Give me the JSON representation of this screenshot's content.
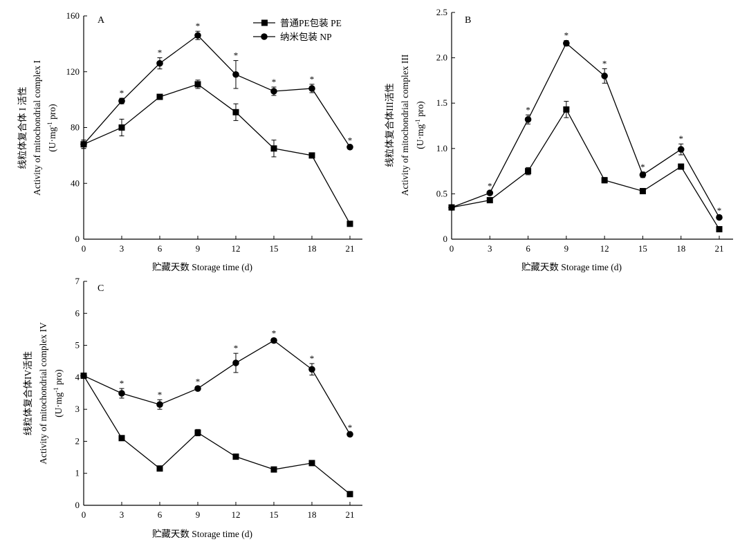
{
  "chart_data": [
    {
      "type": "line",
      "panel_label": "A",
      "x": [
        0,
        3,
        6,
        9,
        12,
        15,
        18,
        21
      ],
      "xlabel": "贮藏天数 Storage time (d)",
      "ylabel_lines": [
        "线粒体复合体 I 活性",
        "Activity of mitochondrial complex  I",
        "(U·mg",
        "-1",
        " pro)"
      ],
      "ylim": [
        0,
        160
      ],
      "yticks": [
        0,
        40,
        80,
        120,
        160
      ],
      "legend": "top-center",
      "grid": false,
      "series": [
        {
          "name": "普通PE包装 PE",
          "marker": "square",
          "values": [
            68,
            80,
            102,
            111,
            91,
            65,
            60,
            11
          ],
          "errors": [
            3,
            6,
            1,
            3,
            6,
            6,
            1,
            1
          ]
        },
        {
          "name": "纳米包装 NP",
          "marker": "circle",
          "values": [
            68,
            99,
            126,
            146,
            118,
            106,
            108,
            66
          ],
          "errors": [
            3,
            2,
            4,
            3,
            10,
            3,
            3,
            1
          ],
          "significant": [
            false,
            true,
            true,
            true,
            true,
            true,
            true,
            true
          ]
        }
      ]
    },
    {
      "type": "line",
      "panel_label": "B",
      "x": [
        0,
        3,
        6,
        9,
        12,
        15,
        18,
        21
      ],
      "xlabel": "贮藏天数 Storage time (d)",
      "ylabel_lines": [
        "线粒体复合体III活性",
        "Activity of mitochondrial complex III",
        "(U·mg",
        "-1",
        " pro)"
      ],
      "ylim": [
        0,
        2.5
      ],
      "yticks": [
        0,
        0.5,
        1.0,
        1.5,
        2.0,
        2.5
      ],
      "ytick_labels": [
        "0",
        "0.5",
        "1.0",
        "1.5",
        "2.0",
        "2.5"
      ],
      "grid": false,
      "series": [
        {
          "name": "普通PE包装 PE",
          "marker": "square",
          "values": [
            0.35,
            0.43,
            0.75,
            1.43,
            0.65,
            0.53,
            0.8,
            0.11
          ],
          "errors": [
            0.02,
            0.02,
            0.04,
            0.09,
            0.03,
            0.02,
            0.03,
            0.01
          ]
        },
        {
          "name": "纳米包装 NP",
          "marker": "circle",
          "values": [
            0.35,
            0.51,
            1.32,
            2.16,
            1.8,
            0.71,
            0.99,
            0.24
          ],
          "errors": [
            0.02,
            0.02,
            0.05,
            0.03,
            0.08,
            0.03,
            0.06,
            0.02
          ],
          "significant": [
            false,
            true,
            true,
            true,
            true,
            true,
            true,
            true
          ]
        }
      ]
    },
    {
      "type": "line",
      "panel_label": "C",
      "x": [
        0,
        3,
        6,
        9,
        12,
        15,
        18,
        21
      ],
      "xlabel": "贮藏天数 Storage time (d)",
      "ylabel_lines": [
        "线粒体复合体IV活性",
        "Activity of mitochondrial complex IV",
        "(U·mg",
        "-1",
        " pro)"
      ],
      "ylim": [
        0,
        7
      ],
      "yticks": [
        0,
        1,
        2,
        3,
        4,
        5,
        6,
        7
      ],
      "grid": false,
      "series": [
        {
          "name": "普通PE包装 PE",
          "marker": "square",
          "values": [
            4.05,
            2.1,
            1.15,
            2.27,
            1.52,
            1.12,
            1.32,
            0.35
          ],
          "errors": [
            0.05,
            0.05,
            0.05,
            0.1,
            0.08,
            0.04,
            0.05,
            0.03
          ]
        },
        {
          "name": "纳米包装 NP",
          "marker": "circle",
          "values": [
            4.05,
            3.5,
            3.15,
            3.65,
            4.45,
            5.15,
            4.25,
            2.22
          ],
          "errors": [
            0.05,
            0.15,
            0.15,
            0.05,
            0.3,
            0.07,
            0.18,
            0.05
          ],
          "significant": [
            false,
            true,
            true,
            true,
            true,
            true,
            true,
            true
          ]
        }
      ]
    }
  ]
}
